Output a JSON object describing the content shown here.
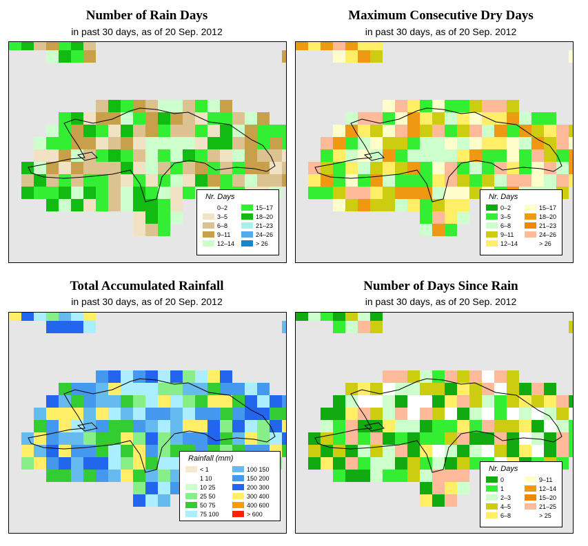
{
  "panels": [
    {
      "id": "rain-days",
      "title": "Number of Rain Days",
      "subtitle": "in past 30 days, as of  20 Sep. 2012",
      "legend_title": "Nr. Days",
      "legend": [
        {
          "label": "0–2",
          "color": "#ffffff"
        },
        {
          "label": "3–5",
          "color": "#f2e2c4"
        },
        {
          "label": "6–8",
          "color": "#dcc290"
        },
        {
          "label": "9–11",
          "color": "#c8a04a"
        },
        {
          "label": "12–14",
          "color": "#ccffcc"
        },
        {
          "label": "15–17",
          "color": "#33ee33"
        },
        {
          "label": "18–20",
          "color": "#11bb11"
        },
        {
          "label": "21–23",
          "color": "#aaeeee"
        },
        {
          "label": "24–26",
          "color": "#55aaee"
        },
        {
          "label": "> 26",
          "color": "#1188cc"
        }
      ]
    },
    {
      "id": "dry-days",
      "title": "Maximum Consecutive Dry Days",
      "subtitle": "in past 30 days, as of  20 Sep. 2012",
      "legend_title": "Nr. Days",
      "legend": [
        {
          "label": "0–2",
          "color": "#11aa11"
        },
        {
          "label": "3–5",
          "color": "#33ee33"
        },
        {
          "label": "6–8",
          "color": "#ccffcc"
        },
        {
          "label": "9–11",
          "color": "#cccc11"
        },
        {
          "label": "12–14",
          "color": "#ffee66"
        },
        {
          "label": "15–17",
          "color": "#ffffcc"
        },
        {
          "label": "18–20",
          "color": "#ee9911"
        },
        {
          "label": "21–23",
          "color": "#ee8800"
        },
        {
          "label": "24–26",
          "color": "#ffbb99"
        },
        {
          "label": "> 26",
          "color": "#ffffff"
        }
      ]
    },
    {
      "id": "rainfall",
      "title": "Total Accumulated Rainfall",
      "subtitle": "in past 30 days, as of  20 Sep. 2012",
      "legend_title": "Rainfall (mm)",
      "legend": [
        {
          "label": "< 1",
          "color": "#f6e8cc"
        },
        {
          "label": "1   10",
          "color": "#ffffff"
        },
        {
          "label": "10   25",
          "color": "#ccffcc"
        },
        {
          "label": "25   50",
          "color": "#88ee88"
        },
        {
          "label": "50   75",
          "color": "#33cc33"
        },
        {
          "label": "75   100",
          "color": "#aaeeff"
        },
        {
          "label": "100   150",
          "color": "#66bbee"
        },
        {
          "label": "150   200",
          "color": "#4499ee"
        },
        {
          "label": "200   300",
          "color": "#2266ee"
        },
        {
          "label": "300   400",
          "color": "#ffee66"
        },
        {
          "label": "400   600",
          "color": "#ff9900"
        },
        {
          "label": "> 600",
          "color": "#ff2200"
        }
      ]
    },
    {
      "id": "days-since-rain",
      "title": "Number of Days Since Rain",
      "subtitle": "in past 30 days, as of  20 Sep. 2012",
      "legend_title": "Nr. Days",
      "legend": [
        {
          "label": "0",
          "color": "#11aa11"
        },
        {
          "label": "1",
          "color": "#33ee33"
        },
        {
          "label": "2–3",
          "color": "#ccffcc"
        },
        {
          "label": "4–5",
          "color": "#cccc11"
        },
        {
          "label": "6–8",
          "color": "#ffee66"
        },
        {
          "label": "9–11",
          "color": "#ffffcc"
        },
        {
          "label": "12–14",
          "color": "#ee9911"
        },
        {
          "label": "15–20",
          "color": "#ee8800"
        },
        {
          "label": "21–25",
          "color": "#ffbb99"
        },
        {
          "label": "> 25",
          "color": "#ffffff"
        }
      ]
    }
  ],
  "colors": {
    "map_background": "#e6e6e6",
    "outline": "#000000"
  }
}
